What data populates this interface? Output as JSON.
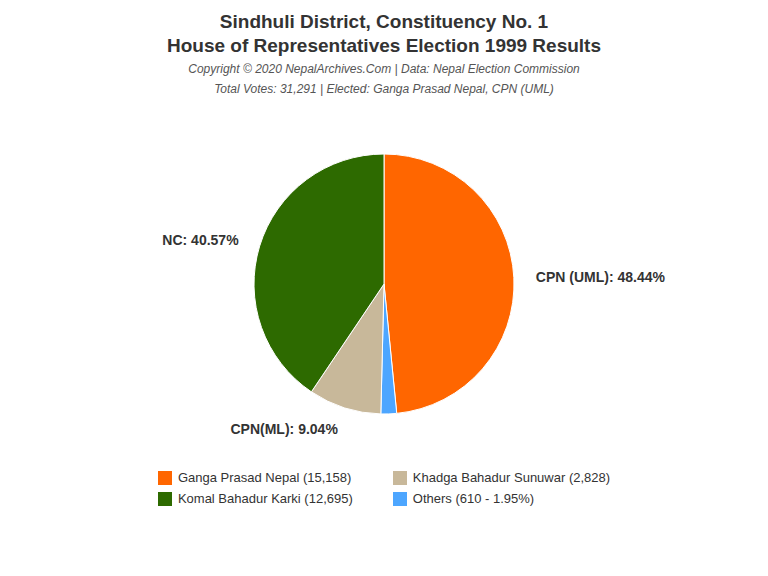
{
  "chart_data": {
    "type": "pie",
    "title": "Sindhuli District, Constituency No. 1",
    "subtitle": "House of Representatives Election 1999 Results",
    "annotations": [
      "Copyright © 2020 NepalArchives.Com | Data: Nepal Election Commission",
      "Total Votes: 31,291 | Elected: Ganga Prasad Nepal, CPN (UML)"
    ],
    "categories": [
      "CPN (UML)",
      "Others",
      "CPN(ML)",
      "NC"
    ],
    "values": [
      48.44,
      1.95,
      9.04,
      40.57
    ],
    "value_labels": [
      "CPN (UML): 48.44%",
      null,
      "CPN(ML): 9.04%",
      "NC: 40.57%"
    ],
    "colors": [
      "#ff6600",
      "#4da6ff",
      "#c8b89a",
      "#2d6a00"
    ],
    "data_labels": true,
    "legend": "bottom",
    "legend_entries": [
      {
        "label": "Ganga Prasad Nepal (15,158)",
        "color": "#ff6600"
      },
      {
        "label": "Komal Bahadur Karki (12,695)",
        "color": "#2d6a00"
      },
      {
        "label": "Khadga Bahadur Sunuwar (2,828)",
        "color": "#c8b89a"
      },
      {
        "label": "Others (610 - 1.95%)",
        "color": "#4da6ff"
      }
    ]
  }
}
